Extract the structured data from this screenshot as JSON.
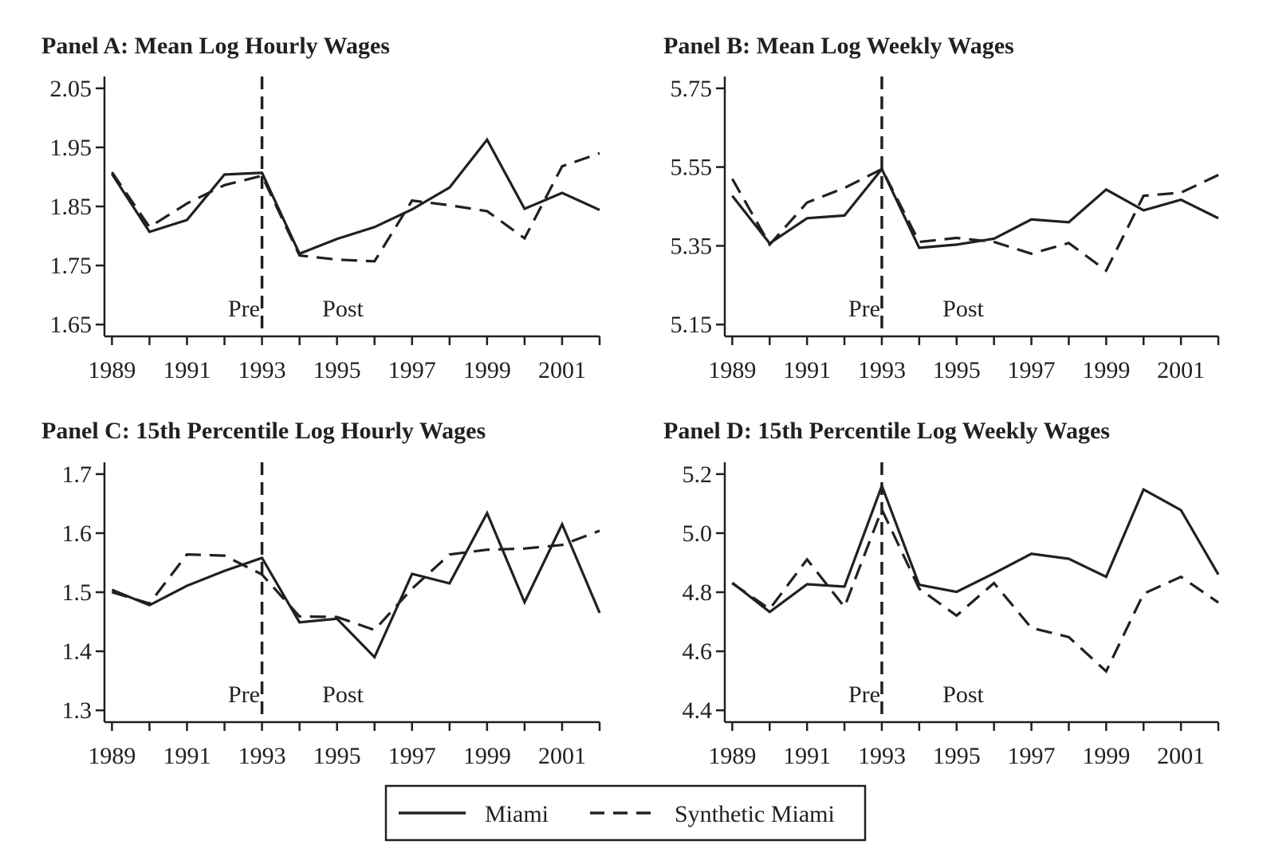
{
  "colors": {
    "ink": "#231f20",
    "background": "#ffffff"
  },
  "legend": {
    "placement": "bottom-center",
    "items": [
      {
        "label": "Miami",
        "style": "solid"
      },
      {
        "label": "Synthetic Miami",
        "style": "dashed"
      }
    ]
  },
  "chart_data": [
    {
      "type": "line",
      "title": "Panel A: Mean Log Hourly Wages",
      "xlabel": "",
      "ylabel": "",
      "xlim": [
        1988.8,
        2002
      ],
      "ylim": [
        1.63,
        2.07
      ],
      "xticks": [
        1989,
        1991,
        1993,
        1995,
        1997,
        1999,
        2001
      ],
      "xtick_labels": [
        "1989",
        "1991",
        "1993",
        "1995",
        "1997",
        "1999",
        "2001"
      ],
      "yticks": [
        1.65,
        1.75,
        1.85,
        1.95,
        2.05
      ],
      "ytick_labels": [
        "1.65",
        "1.75",
        "1.85",
        "1.95",
        "2.05"
      ],
      "grid": false,
      "x": [
        1989,
        1990,
        1991,
        1992,
        1993,
        1994,
        1995,
        1996,
        1997,
        1998,
        1999,
        2000,
        2001,
        2002
      ],
      "series": [
        {
          "name": "Miami",
          "style": "solid",
          "values": [
            1.905,
            1.807,
            1.827,
            1.904,
            1.907,
            1.77,
            1.795,
            1.815,
            1.845,
            1.882,
            1.963,
            1.846,
            1.873,
            1.844
          ]
        },
        {
          "name": "Synthetic Miami",
          "style": "dashed",
          "values": [
            1.908,
            1.815,
            1.855,
            1.886,
            1.902,
            1.767,
            1.76,
            1.757,
            1.86,
            1.852,
            1.842,
            1.796,
            1.918,
            1.94
          ]
        }
      ],
      "vline": {
        "x": 1993,
        "style": "dashed"
      },
      "annotations": [
        {
          "text": "Pre",
          "x": 1993,
          "side": "left"
        },
        {
          "text": "Post",
          "x": 1995,
          "side": "center"
        }
      ]
    },
    {
      "type": "line",
      "title": "Panel B: Mean Log Weekly Wages",
      "xlabel": "",
      "ylabel": "",
      "xlim": [
        1988.8,
        2002
      ],
      "ylim": [
        5.12,
        5.78
      ],
      "xticks": [
        1989,
        1991,
        1993,
        1995,
        1997,
        1999,
        2001
      ],
      "xtick_labels": [
        "1989",
        "1991",
        "1993",
        "1995",
        "1997",
        "1999",
        "2001"
      ],
      "yticks": [
        5.15,
        5.35,
        5.55,
        5.75
      ],
      "ytick_labels": [
        "5.15",
        "5.35",
        "5.55",
        "5.75"
      ],
      "grid": false,
      "x": [
        1989,
        1990,
        1991,
        1992,
        1993,
        1994,
        1995,
        1996,
        1997,
        1998,
        1999,
        2000,
        2001,
        2002
      ],
      "series": [
        {
          "name": "Miami",
          "style": "solid",
          "values": [
            5.477,
            5.356,
            5.42,
            5.427,
            5.545,
            5.345,
            5.353,
            5.368,
            5.417,
            5.41,
            5.493,
            5.44,
            5.467,
            5.42
          ]
        },
        {
          "name": "Synthetic Miami",
          "style": "dashed",
          "values": [
            5.52,
            5.353,
            5.46,
            5.497,
            5.545,
            5.36,
            5.37,
            5.36,
            5.33,
            5.357,
            5.287,
            5.477,
            5.485,
            5.53
          ]
        }
      ],
      "vline": {
        "x": 1993,
        "style": "dashed"
      },
      "annotations": [
        {
          "text": "Pre",
          "x": 1993,
          "side": "left"
        },
        {
          "text": "Post",
          "x": 1995,
          "side": "center"
        }
      ]
    },
    {
      "type": "line",
      "title": "Panel C: 15th Percentile Log Hourly Wages",
      "xlabel": "",
      "ylabel": "",
      "xlim": [
        1988.8,
        2002
      ],
      "ylim": [
        1.28,
        1.72
      ],
      "xticks": [
        1989,
        1991,
        1993,
        1995,
        1997,
        1999,
        2001
      ],
      "xtick_labels": [
        "1989",
        "1991",
        "1993",
        "1995",
        "1997",
        "1999",
        "2001"
      ],
      "yticks": [
        1.3,
        1.4,
        1.5,
        1.6,
        1.7
      ],
      "ytick_labels": [
        "1.3",
        "1.4",
        "1.5",
        "1.6",
        "1.7"
      ],
      "grid": false,
      "x": [
        1989,
        1990,
        1991,
        1992,
        1993,
        1994,
        1995,
        1996,
        1997,
        1998,
        1999,
        2000,
        2001,
        2002
      ],
      "series": [
        {
          "name": "Miami",
          "style": "solid",
          "values": [
            1.504,
            1.478,
            1.511,
            1.536,
            1.558,
            1.449,
            1.455,
            1.39,
            1.531,
            1.515,
            1.634,
            1.483,
            1.615,
            1.465
          ]
        },
        {
          "name": "Synthetic Miami",
          "style": "dashed",
          "values": [
            1.5,
            1.481,
            1.564,
            1.562,
            1.53,
            1.459,
            1.458,
            1.436,
            1.506,
            1.564,
            1.572,
            1.574,
            1.58,
            1.604
          ]
        }
      ],
      "vline": {
        "x": 1993,
        "style": "dashed"
      },
      "annotations": [
        {
          "text": "Pre",
          "x": 1993,
          "side": "left"
        },
        {
          "text": "Post",
          "x": 1995,
          "side": "center"
        }
      ]
    },
    {
      "type": "line",
      "title": "Panel D: 15th Percentile Log Weekly Wages",
      "xlabel": "",
      "ylabel": "",
      "xlim": [
        1988.8,
        2002
      ],
      "ylim": [
        4.36,
        5.24
      ],
      "xticks": [
        1989,
        1991,
        1993,
        1995,
        1997,
        1999,
        2001
      ],
      "xtick_labels": [
        "1989",
        "1991",
        "1993",
        "1995",
        "1997",
        "1999",
        "2001"
      ],
      "yticks": [
        4.4,
        4.6,
        4.8,
        5.0,
        5.2
      ],
      "ytick_labels": [
        "4.4",
        "4.6",
        "4.8",
        "5.0",
        "5.2"
      ],
      "grid": false,
      "x": [
        1989,
        1990,
        1991,
        1992,
        1993,
        1994,
        1995,
        1996,
        1997,
        1998,
        1999,
        2000,
        2001,
        2002
      ],
      "series": [
        {
          "name": "Miami",
          "style": "solid",
          "values": [
            4.832,
            4.733,
            4.827,
            4.819,
            5.16,
            4.825,
            4.801,
            4.864,
            4.93,
            4.913,
            4.852,
            5.148,
            5.078,
            4.86
          ]
        },
        {
          "name": "Synthetic Miami",
          "style": "dashed",
          "values": [
            4.83,
            4.743,
            4.911,
            4.75,
            5.08,
            4.812,
            4.721,
            4.831,
            4.679,
            4.648,
            4.532,
            4.795,
            4.852,
            4.765
          ]
        }
      ],
      "vline": {
        "x": 1993,
        "style": "dashed"
      },
      "annotations": [
        {
          "text": "Pre",
          "x": 1993,
          "side": "left"
        },
        {
          "text": "Post",
          "x": 1995,
          "side": "center"
        }
      ]
    }
  ]
}
